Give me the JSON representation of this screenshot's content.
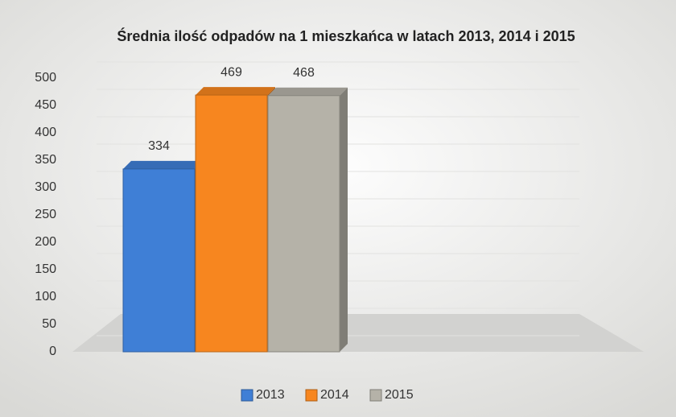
{
  "chart_data": {
    "type": "bar",
    "title": "Średnia ilość odpadów na 1 mieszkańca w latach 2013, 2014 i 2015",
    "categories": [
      null
    ],
    "series": [
      {
        "name": "2013",
        "color": "#3f7fd6",
        "values": [
          334
        ]
      },
      {
        "name": "2014",
        "color": "#f7861f",
        "values": [
          469
        ]
      },
      {
        "name": "2015",
        "color": "#b5b2a8",
        "values": [
          468
        ]
      }
    ],
    "ylim": [
      0,
      500
    ],
    "yticks": [
      0,
      50,
      100,
      150,
      200,
      250,
      300,
      350,
      400,
      450,
      500
    ],
    "grid": true,
    "legend": "bottom",
    "data_labels": true
  }
}
